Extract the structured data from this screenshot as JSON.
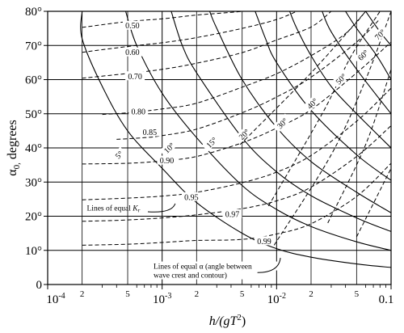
{
  "chart_data": {
    "type": "line",
    "title": "",
    "x_axis": {
      "scale": "log",
      "range": [
        0.0001,
        0.1
      ],
      "major_ticks": [
        {
          "value": 0.0001,
          "label": "10"
        },
        {
          "value": 0.001,
          "label": "10"
        },
        {
          "value": 0.01,
          "label": "10"
        },
        {
          "value": 0.1,
          "label": "0.1"
        }
      ],
      "major_exponents": [
        "-4",
        "-3",
        "-2",
        ""
      ],
      "minor_ticks": [
        {
          "value": 0.0002,
          "label": "2"
        },
        {
          "value": 0.0005,
          "label": "5"
        },
        {
          "value": 0.002,
          "label": "2"
        },
        {
          "value": 0.005,
          "label": "5"
        },
        {
          "value": 0.02,
          "label": "2"
        },
        {
          "value": 0.05,
          "label": "5"
        }
      ],
      "title_parts": {
        "a": "h/(gT",
        "sup": "2",
        "b": ")"
      }
    },
    "y_axis": {
      "range": [
        0,
        80
      ],
      "ticks": [
        {
          "value": 0,
          "label": "0"
        },
        {
          "value": 10,
          "label": "10°"
        },
        {
          "value": 20,
          "label": "20°"
        },
        {
          "value": 30,
          "label": "30°"
        },
        {
          "value": 40,
          "label": "40°"
        },
        {
          "value": 50,
          "label": "50°"
        },
        {
          "value": 60,
          "label": "60°"
        },
        {
          "value": 70,
          "label": "70°"
        },
        {
          "value": 80,
          "label": "80°"
        }
      ],
      "title_parts": {
        "alpha": "α",
        "sub": "0,",
        "rest": " degrees"
      }
    },
    "grid": true,
    "series_kr": [
      {
        "label": "0.50",
        "points": [
          [
            0.0002,
            75.3
          ],
          [
            0.0005,
            77.0
          ],
          [
            0.001,
            77.8
          ],
          [
            0.002,
            78.9
          ],
          [
            0.005,
            80
          ],
          [
            0.0065,
            81
          ]
        ],
        "label_at": [
          0.00055,
          75.8
        ]
      },
      {
        "label": "0.60",
        "points": [
          [
            0.0002,
            68.0
          ],
          [
            0.0005,
            69.7
          ],
          [
            0.001,
            70.8
          ],
          [
            0.002,
            72.3
          ],
          [
            0.005,
            75.0
          ],
          [
            0.01,
            77.6
          ],
          [
            0.015,
            80
          ]
        ],
        "label_at": [
          0.00055,
          68.0
        ]
      },
      {
        "label": "0.70",
        "points": [
          [
            0.0002,
            60.4
          ],
          [
            0.0005,
            61.8
          ],
          [
            0.001,
            63.0
          ],
          [
            0.002,
            64.8
          ],
          [
            0.005,
            67.9
          ],
          [
            0.01,
            71.6
          ],
          [
            0.02,
            75.4
          ],
          [
            0.03,
            80
          ]
        ],
        "label_at": [
          0.00058,
          61.0
        ]
      },
      {
        "label": "0.80",
        "points": [
          [
            0.0003,
            49.8
          ],
          [
            0.0005,
            50.3
          ],
          [
            0.001,
            51.4
          ],
          [
            0.002,
            53.1
          ],
          [
            0.005,
            57.8
          ],
          [
            0.01,
            61.7
          ],
          [
            0.02,
            67.0
          ],
          [
            0.04,
            73.5
          ],
          [
            0.06,
            80
          ]
        ],
        "label_at": [
          0.00062,
          50.6
        ]
      },
      {
        "label": "0.85",
        "points": [
          [
            0.0004,
            42.5
          ],
          [
            0.0007,
            43.0
          ],
          [
            0.001,
            43.6
          ],
          [
            0.002,
            45.5
          ],
          [
            0.005,
            50.3
          ],
          [
            0.01,
            54.9
          ],
          [
            0.02,
            60.7
          ],
          [
            0.05,
            71.0
          ],
          [
            0.08,
            77.8
          ]
        ],
        "label_at": [
          0.00078,
          44.6
        ]
      },
      {
        "label": "0.90",
        "points": [
          [
            0.0002,
            35.3
          ],
          [
            0.0005,
            35.5
          ],
          [
            0.001,
            36.2
          ],
          [
            0.002,
            37.5
          ],
          [
            0.005,
            41.5
          ],
          [
            0.01,
            45.8
          ],
          [
            0.02,
            51.2
          ],
          [
            0.05,
            62.0
          ],
          [
            0.1,
            71.0
          ]
        ],
        "label_at": [
          0.0011,
          36.3
        ]
      },
      {
        "label": "0.95",
        "points": [
          [
            0.0002,
            24.8
          ],
          [
            0.0005,
            25.3
          ],
          [
            0.001,
            25.9
          ],
          [
            0.002,
            27.0
          ],
          [
            0.005,
            29.8
          ],
          [
            0.01,
            32.9
          ],
          [
            0.02,
            37.8
          ],
          [
            0.05,
            47.8
          ],
          [
            0.1,
            57.5
          ]
        ],
        "label_at": [
          0.0018,
          25.6
        ]
      },
      {
        "label": "0.97",
        "points": [
          [
            0.0002,
            18.5
          ],
          [
            0.0005,
            18.9
          ],
          [
            0.001,
            19.5
          ],
          [
            0.002,
            20.4
          ],
          [
            0.005,
            22.2
          ],
          [
            0.01,
            24.5
          ],
          [
            0.02,
            28.5
          ],
          [
            0.05,
            37.5
          ],
          [
            0.1,
            46.5
          ]
        ],
        "label_at": [
          0.0041,
          20.6
        ]
      },
      {
        "label": "0.99",
        "points": [
          [
            0.0002,
            11.5
          ],
          [
            0.0005,
            11.8
          ],
          [
            0.001,
            12.3
          ],
          [
            0.002,
            12.9
          ],
          [
            0.005,
            13.2
          ],
          [
            0.01,
            14.8
          ],
          [
            0.02,
            17.8
          ],
          [
            0.05,
            25.8
          ],
          [
            0.1,
            35.5
          ]
        ],
        "label_at": [
          0.0078,
          12.7
        ]
      }
    ],
    "series_alpha": [
      {
        "label": "5°",
        "points": [
          [
            0.0002,
            80
          ],
          [
            0.0002,
            72
          ],
          [
            0.0003,
            58
          ],
          [
            0.0005,
            45
          ],
          [
            0.001,
            34
          ],
          [
            0.002,
            24
          ],
          [
            0.005,
            15
          ],
          [
            0.01,
            10.5
          ],
          [
            0.02,
            8
          ],
          [
            0.05,
            6
          ],
          [
            0.1,
            5
          ]
        ],
        "label_at": [
          0.00042,
          38
        ]
      },
      {
        "label": "10°",
        "points": [
          [
            0.00048,
            80
          ],
          [
            0.0006,
            70
          ],
          [
            0.001,
            56
          ],
          [
            0.002,
            43
          ],
          [
            0.005,
            29
          ],
          [
            0.01,
            22
          ],
          [
            0.02,
            17
          ],
          [
            0.05,
            12.5
          ],
          [
            0.1,
            10
          ]
        ],
        "label_at": [
          0.00115,
          40
        ]
      },
      {
        "label": "15°",
        "points": [
          [
            0.0012,
            80
          ],
          [
            0.0015,
            70
          ],
          [
            0.002,
            62
          ],
          [
            0.005,
            43
          ],
          [
            0.01,
            33
          ],
          [
            0.02,
            26
          ],
          [
            0.05,
            19.5
          ],
          [
            0.1,
            15.5
          ]
        ],
        "label_at": [
          0.0027,
          41.6
        ]
      },
      {
        "label": "20°",
        "points": [
          [
            0.0026,
            80
          ],
          [
            0.003,
            75
          ],
          [
            0.005,
            60
          ],
          [
            0.01,
            46
          ],
          [
            0.02,
            36
          ],
          [
            0.05,
            27
          ],
          [
            0.1,
            21
          ]
        ],
        "label_at": [
          0.0052,
          44
        ]
      },
      {
        "label": "30°",
        "points": [
          [
            0.0065,
            80
          ],
          [
            0.008,
            72
          ],
          [
            0.01,
            65
          ],
          [
            0.02,
            51
          ],
          [
            0.05,
            38
          ],
          [
            0.1,
            30.5
          ]
        ],
        "label_at": [
          0.0112,
          47.2
        ]
      },
      {
        "label": "40°",
        "points": [
          [
            0.013,
            80
          ],
          [
            0.015,
            75
          ],
          [
            0.02,
            67
          ],
          [
            0.03,
            58
          ],
          [
            0.05,
            50
          ],
          [
            0.1,
            40
          ]
        ],
        "label_at": [
          0.0205,
          53
        ]
      },
      {
        "label": "50°",
        "points": [
          [
            0.025,
            80
          ],
          [
            0.03,
            74
          ],
          [
            0.05,
            63
          ],
          [
            0.1,
            50
          ]
        ],
        "label_at": [
          0.0365,
          60.2
        ]
      },
      {
        "label": "60°",
        "points": [
          [
            0.04,
            80
          ],
          [
            0.05,
            75
          ],
          [
            0.075,
            67
          ],
          [
            0.1,
            60
          ]
        ],
        "label_at": [
          0.057,
          67.2
        ]
      },
      {
        "label": "70°",
        "points": [
          [
            0.06,
            80
          ],
          [
            0.08,
            74
          ],
          [
            0.1,
            70
          ]
        ],
        "label_at": [
          0.08,
          73.2
        ]
      }
    ],
    "dashed_rays": [
      {
        "points": [
          [
            0.0048,
            41
          ],
          [
            0.02,
            62
          ],
          [
            0.06,
            80
          ]
        ]
      },
      {
        "points": [
          [
            0.0085,
            23
          ],
          [
            0.025,
            50
          ],
          [
            0.045,
            67
          ],
          [
            0.08,
            80
          ]
        ]
      },
      {
        "points": [
          [
            0.0095,
            11.5
          ],
          [
            0.03,
            38
          ],
          [
            0.06,
            60
          ],
          [
            0.1,
            80
          ]
        ]
      },
      {
        "points": [
          [
            0.028,
            18
          ],
          [
            0.06,
            41
          ],
          [
            0.1,
            63
          ]
        ]
      },
      {
        "points": [
          [
            0.05,
            14
          ],
          [
            0.1,
            34
          ]
        ]
      }
    ],
    "annotations": [
      {
        "text_parts": [
          "Lines of equal ",
          "K",
          "r"
        ],
        "at": [
          0.00022,
          21.6
        ],
        "arrow": [
          [
            0.00075,
            21.3
          ],
          [
            0.0013,
            23.7
          ]
        ]
      },
      {
        "text_lines": [
          "Lines of equal α (angle between",
          "wave crest and contour)"
        ],
        "at": [
          0.00084,
          4.6
        ],
        "arrow": [
          [
            0.0068,
            3.5
          ],
          [
            0.0108,
            7.8
          ]
        ]
      }
    ]
  }
}
